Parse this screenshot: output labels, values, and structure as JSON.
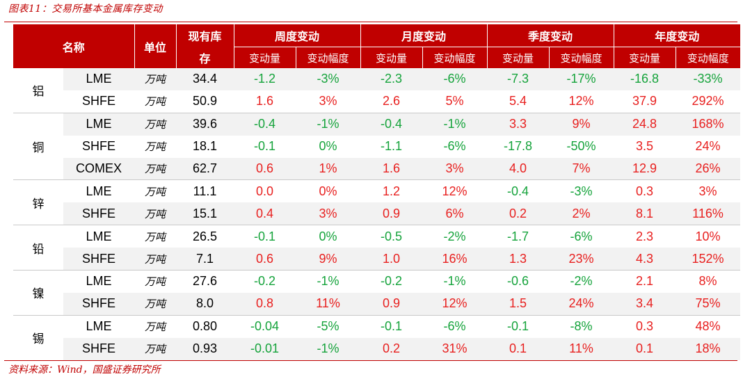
{
  "caption": "图表11：交易所基本金属库存变动",
  "source": "资料来源：Wind，国盛证券研究所",
  "header": {
    "name": "名称",
    "unit": "单位",
    "stock_line1": "现有库",
    "stock_line2": "存",
    "groups": [
      "周度变动",
      "月度变动",
      "季度变动",
      "年度变动"
    ],
    "sub_change": "变动量",
    "sub_pct": "变动幅度"
  },
  "colors": {
    "accent": "#c00000",
    "positive": "#e8201f",
    "negative": "#15a33b",
    "band": "#f2f2f2"
  },
  "metals": [
    {
      "name": "铝",
      "rows": [
        {
          "ex": "LME",
          "unit": "万吨",
          "stock": "34.4",
          "vals": [
            "-1.2",
            "-3%",
            "-2.3",
            "-6%",
            "-7.3",
            "-17%",
            "-16.8",
            "-33%"
          ]
        },
        {
          "ex": "SHFE",
          "unit": "万吨",
          "stock": "50.9",
          "vals": [
            "1.6",
            "3%",
            "2.6",
            "5%",
            "5.4",
            "12%",
            "37.9",
            "292%"
          ]
        }
      ]
    },
    {
      "name": "铜",
      "rows": [
        {
          "ex": "LME",
          "unit": "万吨",
          "stock": "39.6",
          "vals": [
            "-0.4",
            "-1%",
            "-0.4",
            "-1%",
            "3.3",
            "9%",
            "24.8",
            "168%"
          ]
        },
        {
          "ex": "SHFE",
          "unit": "万吨",
          "stock": "18.1",
          "vals": [
            "-0.1",
            "0%",
            "-1.1",
            "-6%",
            "-17.8",
            "-50%",
            "3.5",
            "24%"
          ]
        },
        {
          "ex": "COMEX",
          "unit": "万吨",
          "stock": "62.7",
          "vals": [
            "0.6",
            "1%",
            "1.6",
            "3%",
            "4.0",
            "7%",
            "12.9",
            "26%"
          ]
        }
      ]
    },
    {
      "name": "锌",
      "rows": [
        {
          "ex": "LME",
          "unit": "万吨",
          "stock": "11.1",
          "vals": [
            "0.0",
            "0%",
            "1.2",
            "12%",
            "-0.4",
            "-3%",
            "0.3",
            "3%"
          ]
        },
        {
          "ex": "SHFE",
          "unit": "万吨",
          "stock": "15.1",
          "vals": [
            "0.4",
            "3%",
            "0.9",
            "6%",
            "0.2",
            "2%",
            "8.1",
            "116%"
          ]
        }
      ]
    },
    {
      "name": "铅",
      "rows": [
        {
          "ex": "LME",
          "unit": "万吨",
          "stock": "26.5",
          "vals": [
            "-0.1",
            "0%",
            "-0.5",
            "-2%",
            "-1.7",
            "-6%",
            "2.3",
            "10%"
          ]
        },
        {
          "ex": "SHFE",
          "unit": "万吨",
          "stock": "7.1",
          "vals": [
            "0.6",
            "9%",
            "1.0",
            "16%",
            "1.3",
            "23%",
            "4.3",
            "152%"
          ]
        }
      ]
    },
    {
      "name": "镍",
      "rows": [
        {
          "ex": "LME",
          "unit": "万吨",
          "stock": "27.6",
          "vals": [
            "-0.2",
            "-1%",
            "-0.2",
            "-1%",
            "-0.6",
            "-2%",
            "2.1",
            "8%"
          ]
        },
        {
          "ex": "SHFE",
          "unit": "万吨",
          "stock": "8.0",
          "vals": [
            "0.8",
            "11%",
            "0.9",
            "12%",
            "1.5",
            "24%",
            "3.4",
            "75%"
          ]
        }
      ]
    },
    {
      "name": "锡",
      "rows": [
        {
          "ex": "LME",
          "unit": "万吨",
          "stock": "0.80",
          "vals": [
            "-0.04",
            "-5%",
            "-0.1",
            "-6%",
            "-0.1",
            "-8%",
            "0.3",
            "48%"
          ]
        },
        {
          "ex": "SHFE",
          "unit": "万吨",
          "stock": "0.93",
          "vals": [
            "-0.01",
            "-1%",
            "0.2",
            "31%",
            "0.1",
            "11%",
            "0.1",
            "18%"
          ]
        }
      ]
    }
  ]
}
